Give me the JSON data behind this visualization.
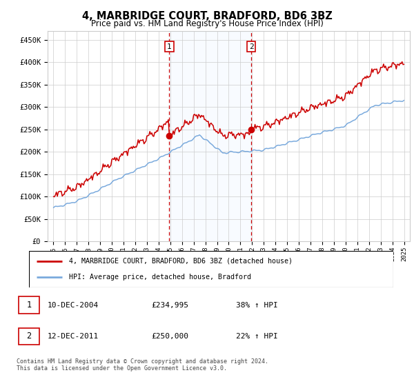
{
  "title": "4, MARBRIDGE COURT, BRADFORD, BD6 3BZ",
  "subtitle": "Price paid vs. HM Land Registry's House Price Index (HPI)",
  "legend_line1": "4, MARBRIDGE COURT, BRADFORD, BD6 3BZ (detached house)",
  "legend_line2": "HPI: Average price, detached house, Bradford",
  "annotation1_date": "10-DEC-2004",
  "annotation1_price": "£234,995",
  "annotation1_hpi": "38% ↑ HPI",
  "annotation2_date": "12-DEC-2011",
  "annotation2_price": "£250,000",
  "annotation2_hpi": "22% ↑ HPI",
  "footer": "Contains HM Land Registry data © Crown copyright and database right 2024.\nThis data is licensed under the Open Government Licence v3.0.",
  "red_color": "#cc0000",
  "blue_color": "#7aaadd",
  "vline_color": "#cc0000",
  "shade_color": "#ddeeff",
  "grid_color": "#cccccc",
  "ylim": [
    0,
    470000
  ],
  "yticks": [
    0,
    50000,
    100000,
    150000,
    200000,
    250000,
    300000,
    350000,
    400000,
    450000
  ],
  "ylabels": [
    "£0",
    "£50K",
    "£100K",
    "£150K",
    "£200K",
    "£250K",
    "£300K",
    "£350K",
    "£400K",
    "£450K"
  ],
  "sale1_x": 2004.92,
  "sale1_y": 234995,
  "sale2_x": 2011.92,
  "sale2_y": 250000,
  "xlim": [
    1994.5,
    2025.5
  ]
}
